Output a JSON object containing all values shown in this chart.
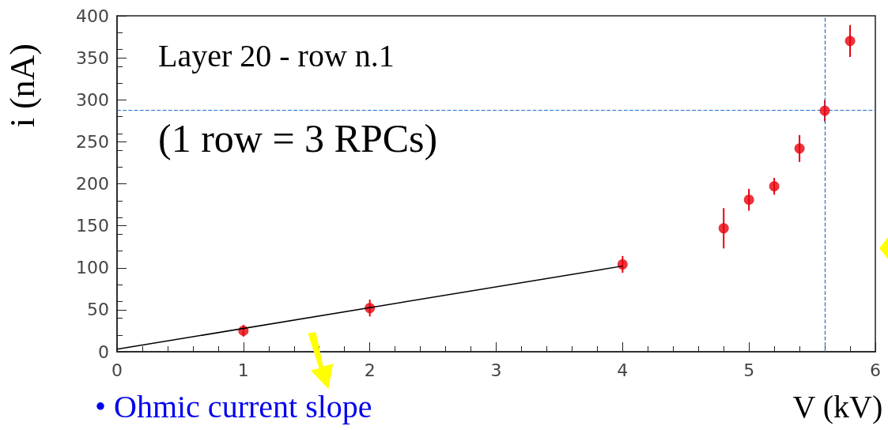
{
  "chart_data": {
    "type": "scatter",
    "title": "Layer 20 - row n.1",
    "subtitle": "(1 row = 3 RPCs)",
    "xlabel": "V (kV)",
    "ylabel": "i (nA)",
    "annotations": [
      "• Ohmic current slope"
    ],
    "xlim": [
      0,
      6
    ],
    "xticks": [
      0,
      1,
      2,
      3,
      4,
      5,
      6
    ],
    "ylim": [
      0,
      400
    ],
    "yticks": [
      0,
      50,
      100,
      150,
      200,
      250,
      300,
      350,
      400
    ],
    "grid": false,
    "series": [
      {
        "color": "#e8000b",
        "marker": "circle",
        "x": [
          1,
          2,
          4,
          4.8,
          5.0,
          5.2,
          5.4,
          5.6,
          5.8
        ],
        "values": [
          25,
          52,
          104,
          147,
          181,
          197,
          242,
          287,
          370
        ],
        "errors": [
          7,
          10,
          10,
          24,
          13,
          10,
          16,
          13,
          19
        ]
      },
      {
        "type": "line",
        "color": "#000000",
        "marker": "none",
        "x": [
          0,
          4
        ],
        "values": [
          3,
          102
        ]
      }
    ],
    "ref_lines": [
      {
        "axis": "x",
        "value": 5.6,
        "color": "#1f6fd0",
        "line_style": "dashed"
      },
      {
        "axis": "y",
        "value": 288,
        "color": "#1f6fd0",
        "line_style": "dashed"
      }
    ]
  }
}
